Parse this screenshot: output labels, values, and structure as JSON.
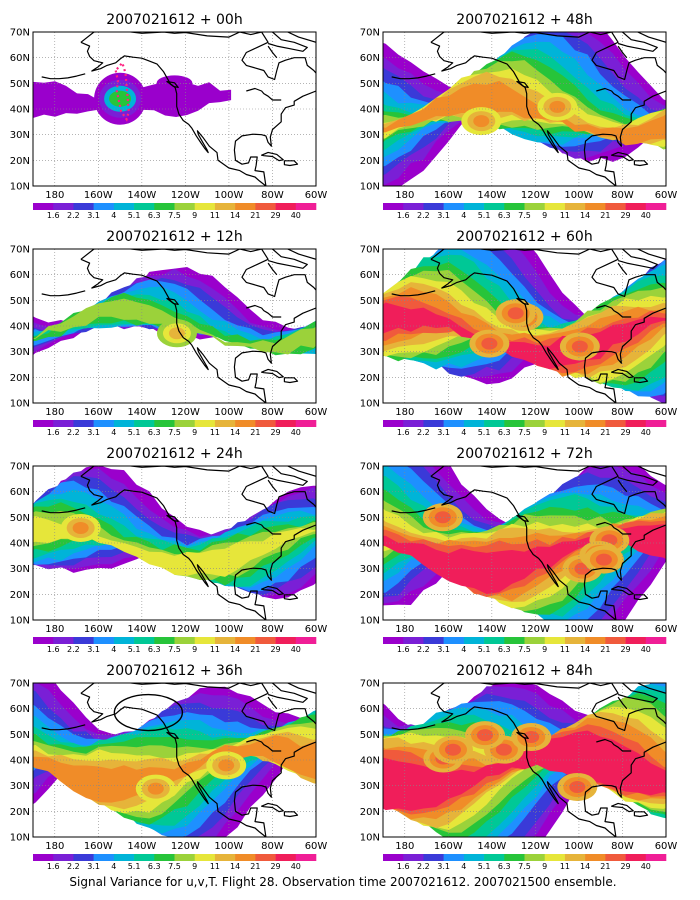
{
  "caption": "Signal Variance for u,v,T. Flight 28. Observation time 2007021612. 2007021500 ensemble.",
  "lat_labels": [
    "10N",
    "20N",
    "30N",
    "40N",
    "50N",
    "60N",
    "70N"
  ],
  "lon_labels": [
    "180",
    "160W",
    "140W",
    "120W",
    "100W",
    "80W",
    "60W"
  ],
  "legend_labels": [
    "1.6",
    "2.2",
    "3.1",
    "4",
    "5.1",
    "6.3",
    "7.5",
    "9",
    "11",
    "14",
    "21",
    "29",
    "40"
  ],
  "colors": {
    "scale": [
      "#9a00cc",
      "#7a1fd6",
      "#3a3ad8",
      "#1e90ff",
      "#00b4d8",
      "#00c896",
      "#27c43a",
      "#9bd23a",
      "#e6e63a",
      "#e6b43a",
      "#f08c28",
      "#f05a3c",
      "#f01e5a",
      "#f01e96"
    ],
    "coast": "#000000",
    "grid": "#888888"
  },
  "map_extent": {
    "lon_min": -190,
    "lon_max": -60,
    "lat_min": 10,
    "lat_max": 70
  },
  "panels": [
    {
      "title": "2007021612 + 00h",
      "flight_track": true,
      "circle": false
    },
    {
      "title": "2007021612 + 48h",
      "flight_track": false,
      "circle": false
    },
    {
      "title": "2007021612 + 12h",
      "flight_track": false,
      "circle": false
    },
    {
      "title": "2007021612 + 60h",
      "flight_track": false,
      "circle": false
    },
    {
      "title": "2007021612 + 24h",
      "flight_track": false,
      "circle": false
    },
    {
      "title": "2007021612 + 72h",
      "flight_track": false,
      "circle": false
    },
    {
      "title": "2007021612 + 36h",
      "flight_track": false,
      "circle": true
    },
    {
      "title": "2007021612 + 84h",
      "flight_track": false,
      "circle": false
    }
  ]
}
